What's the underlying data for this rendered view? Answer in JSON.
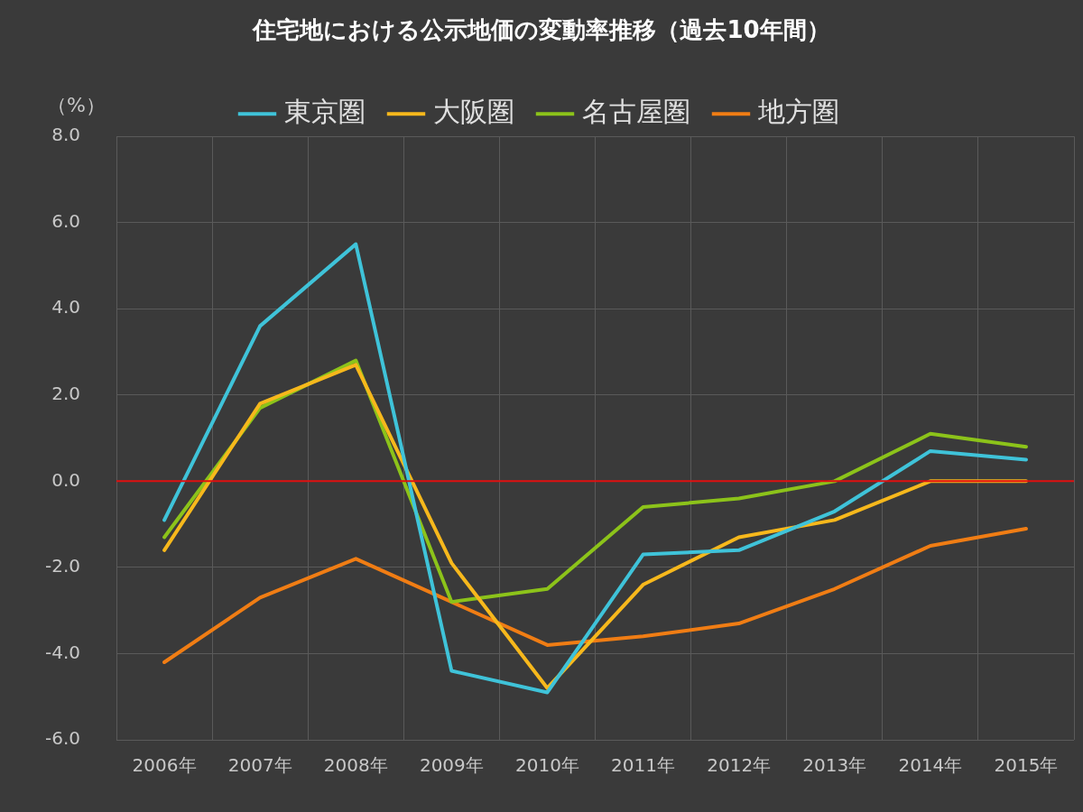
{
  "chart_data": {
    "type": "line",
    "title": "住宅地における公示地価の変動率推移（過去10年間）",
    "ylabel": "（%）",
    "categories": [
      "2006年",
      "2007年",
      "2008年",
      "2009年",
      "2010年",
      "2011年",
      "2012年",
      "2013年",
      "2014年",
      "2015年"
    ],
    "series": [
      {
        "name": "東京圏",
        "color": "#3fc3d9",
        "values": [
          -0.9,
          3.6,
          5.5,
          -4.4,
          -4.9,
          -1.7,
          -1.6,
          -0.7,
          0.7,
          0.5
        ]
      },
      {
        "name": "大阪圏",
        "color": "#f7b81c",
        "values": [
          -1.6,
          1.8,
          2.7,
          -1.9,
          -4.8,
          -2.4,
          -1.3,
          -0.9,
          0.0,
          0.0
        ]
      },
      {
        "name": "名古屋圏",
        "color": "#8cc31a",
        "values": [
          -1.3,
          1.7,
          2.8,
          -2.8,
          -2.5,
          -0.6,
          -0.4,
          0.0,
          1.1,
          0.8
        ]
      },
      {
        "name": "地方圏",
        "color": "#f07d14",
        "values": [
          -4.2,
          -2.7,
          -1.8,
          -2.8,
          -3.8,
          -3.6,
          -3.3,
          -2.5,
          -1.5,
          -1.1
        ]
      }
    ],
    "ylim": [
      -6,
      8
    ],
    "yticks": [
      {
        "value": -6,
        "label": "-6.0"
      },
      {
        "value": -4,
        "label": "-4.0"
      },
      {
        "value": -2,
        "label": "-2.0"
      },
      {
        "value": 0,
        "label": "0.0"
      },
      {
        "value": 2,
        "label": "2.0"
      },
      {
        "value": 4,
        "label": "4.0"
      },
      {
        "value": 6,
        "label": "6.0"
      },
      {
        "value": 8,
        "label": "8.0"
      }
    ],
    "ref_lines": [
      {
        "axis": "y",
        "value": 0,
        "color": "#e01010"
      }
    ],
    "grid": true,
    "legend": "top",
    "marker": "none",
    "line_style": "solid"
  }
}
